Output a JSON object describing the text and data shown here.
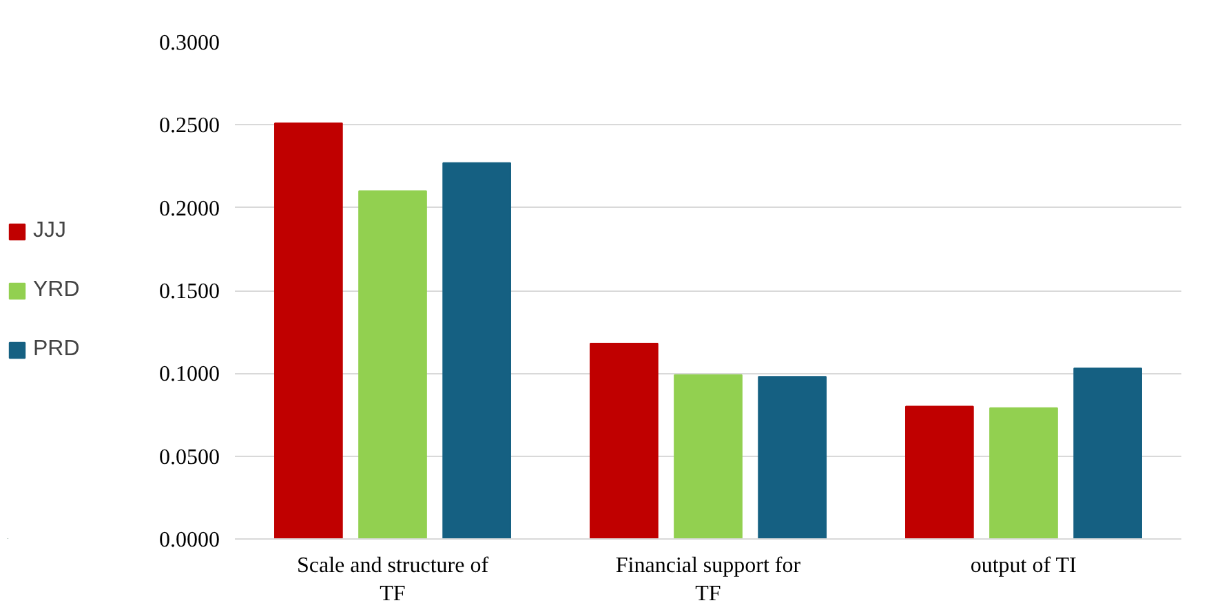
{
  "chart_data": {
    "type": "bar",
    "categories": [
      "Scale and structure of\nTF",
      "Financial support for\nTF",
      "output of TI"
    ],
    "series": [
      {
        "name": "JJJ",
        "color": "#c00000",
        "values": [
          0.251,
          0.118,
          0.08
        ]
      },
      {
        "name": "YRD",
        "color": "#92d050",
        "values": [
          0.21,
          0.099,
          0.079
        ]
      },
      {
        "name": "PRD",
        "color": "#156082",
        "values": [
          0.227,
          0.098,
          0.103
        ]
      }
    ],
    "ylim": [
      0,
      0.3
    ],
    "yticks": [
      {
        "value": 0,
        "label": "0.0000"
      },
      {
        "value": 0.05,
        "label": "0.0500"
      },
      {
        "value": 0.1,
        "label": "0.1000"
      },
      {
        "value": 0.15,
        "label": "0.1500"
      },
      {
        "value": 0.2,
        "label": "0.2000"
      },
      {
        "value": 0.25,
        "label": "0.2500"
      },
      {
        "value": 0.3,
        "label": "0.3000"
      }
    ],
    "grid": "y",
    "legend": "left"
  }
}
